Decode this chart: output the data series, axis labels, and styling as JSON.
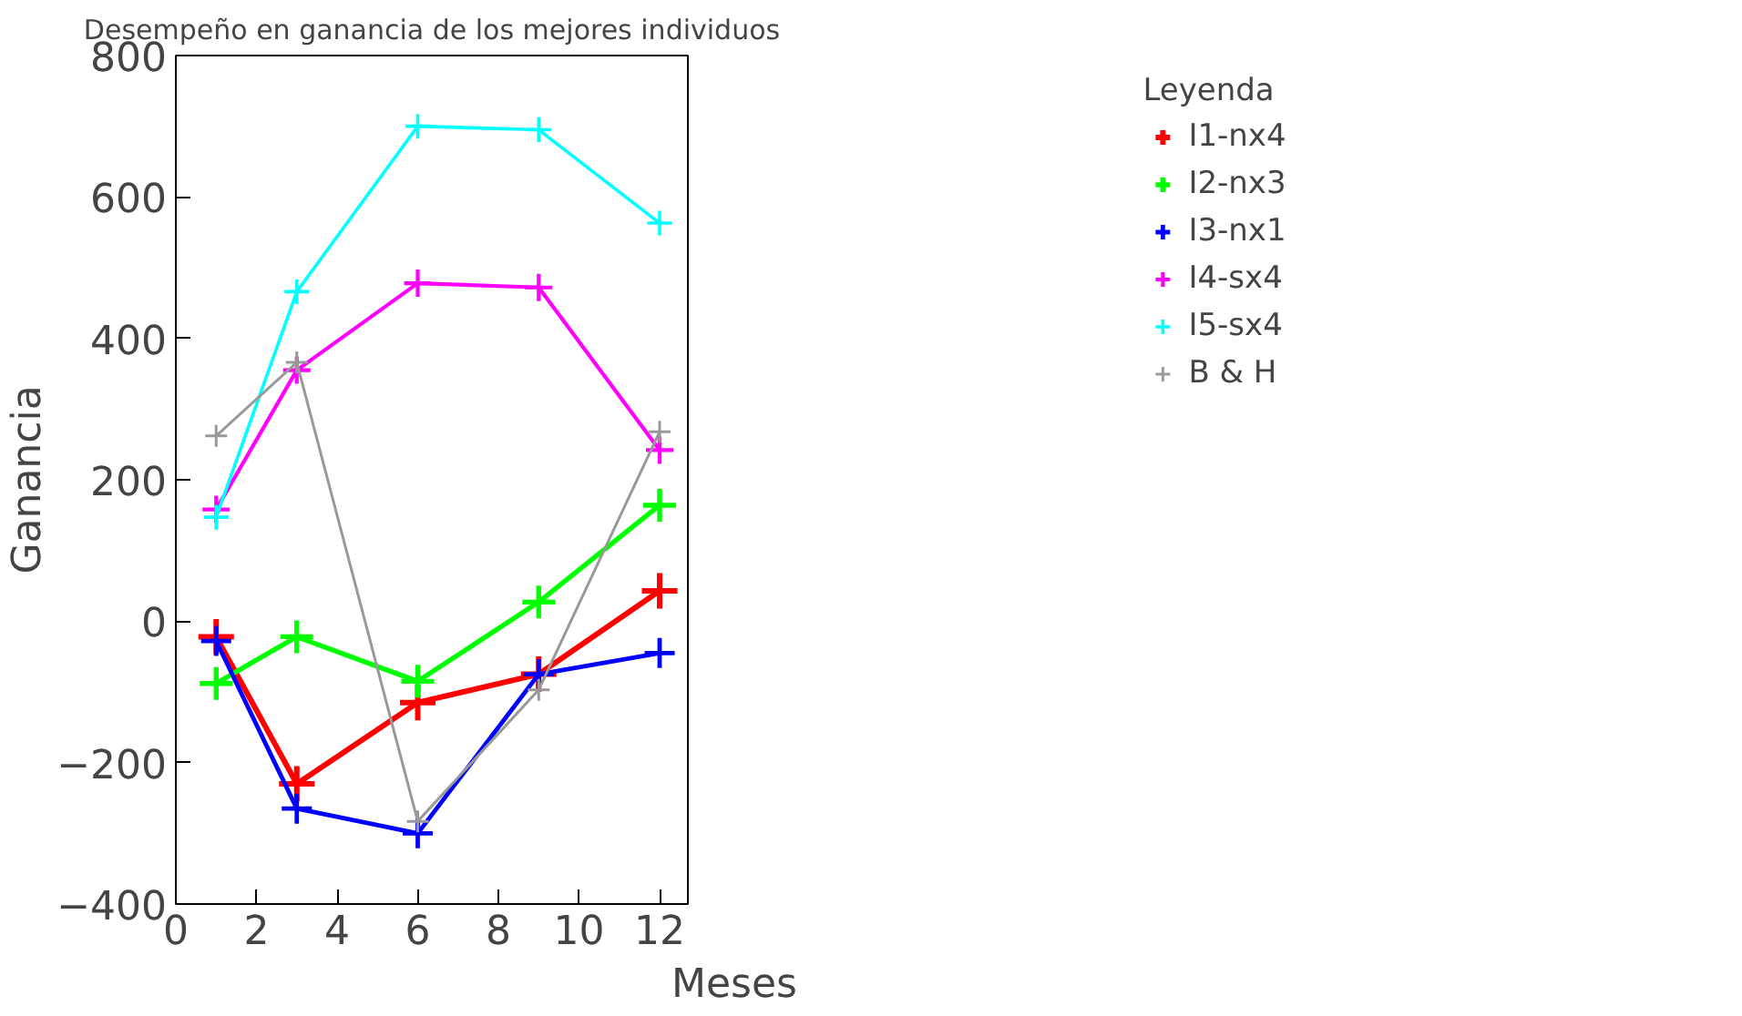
{
  "chart_data": {
    "type": "line",
    "title": "Desempeño en ganancia de los mejores individuos",
    "xlabel": "Meses",
    "ylabel": "Ganancia",
    "legend_title": "Leyenda",
    "x": [
      1,
      3,
      6,
      9,
      12
    ],
    "series": [
      {
        "name": "I1-nx4",
        "color": "#ff0000",
        "values": [
          -22,
          -230,
          -115,
          -75,
          43
        ]
      },
      {
        "name": "I2-nx3",
        "color": "#00ff00",
        "values": [
          -88,
          -22,
          -85,
          27,
          164
        ]
      },
      {
        "name": "I3-nx1",
        "color": "#0000ff",
        "values": [
          -28,
          -265,
          -300,
          -75,
          -45
        ]
      },
      {
        "name": "I4-sx4",
        "color": "#ff00ff",
        "values": [
          158,
          355,
          478,
          472,
          242
        ]
      },
      {
        "name": "I5-sx4",
        "color": "#00ffff",
        "values": [
          147,
          466,
          700,
          695,
          563
        ]
      },
      {
        "name": "B & H",
        "color": "#999999",
        "values": [
          262,
          366,
          -283,
          -97,
          268
        ]
      }
    ],
    "xlim": [
      0,
      12.7
    ],
    "ylim": [
      -400,
      800
    ],
    "xticks": [
      0,
      2,
      4,
      6,
      8,
      10,
      12
    ],
    "yticks": [
      -400,
      -200,
      0,
      200,
      400,
      600,
      800
    ],
    "grid": false,
    "legend": "right",
    "marker": "cross",
    "line_style": "solid"
  }
}
